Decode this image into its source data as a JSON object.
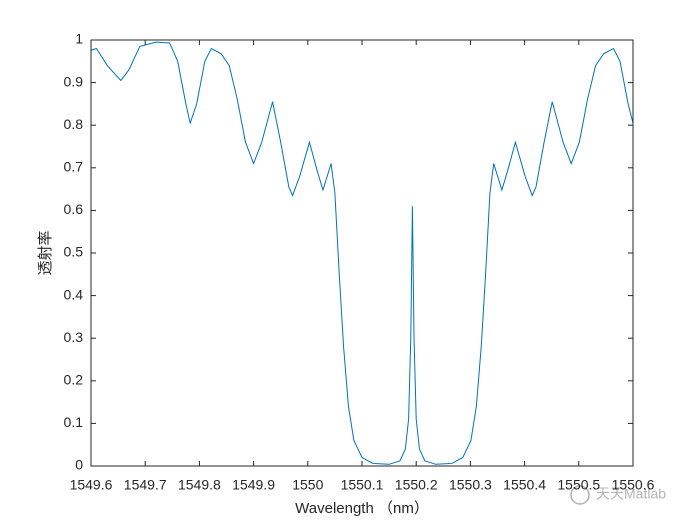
{
  "chart_data": {
    "type": "line",
    "xlabel": "Wavelength （nm）",
    "ylabel": "透射率",
    "watermark": "天天Matlab",
    "color": "#0072bd",
    "xlim": [
      1549.6,
      1550.6
    ],
    "ylim": [
      0,
      1
    ],
    "xticks": [
      1549.6,
      1549.7,
      1549.8,
      1549.9,
      1550,
      1550.1,
      1550.2,
      1550.3,
      1550.4,
      1550.5,
      1550.6
    ],
    "yticks": [
      0,
      0.1,
      0.2,
      0.3,
      0.4,
      0.5,
      0.6,
      0.7,
      0.8,
      0.9,
      1
    ],
    "x": [
      1549.6,
      1549.61,
      1549.63,
      1549.655,
      1549.67,
      1549.69,
      1549.72,
      1549.745,
      1549.76,
      1549.775,
      1549.783,
      1549.795,
      1549.81,
      1549.822,
      1549.84,
      1549.855,
      1549.87,
      1549.885,
      1549.9,
      1549.915,
      1549.935,
      1549.95,
      1549.965,
      1549.972,
      1549.985,
      1550.003,
      1550.018,
      1550.028,
      1550.043,
      1550.05,
      1550.058,
      1550.066,
      1550.075,
      1550.085,
      1550.1,
      1550.12,
      1550.15,
      1550.17,
      1550.18,
      1550.186,
      1550.19,
      1550.193,
      1550.196,
      1550.2,
      1550.206,
      1550.216,
      1550.236,
      1550.266,
      1550.286,
      1550.301,
      1550.311,
      1550.32,
      1550.328,
      1550.336,
      1550.343,
      1550.358,
      1550.368,
      1550.383,
      1550.401,
      1550.414,
      1550.421,
      1550.436,
      1550.451,
      1550.471,
      1550.486,
      1550.501,
      1550.516,
      1550.531,
      1550.546,
      1550.564,
      1550.576,
      1550.591,
      1550.6
    ],
    "values": [
      0.976,
      0.98,
      0.94,
      0.905,
      0.93,
      0.985,
      0.995,
      0.993,
      0.95,
      0.85,
      0.805,
      0.85,
      0.95,
      0.98,
      0.968,
      0.94,
      0.86,
      0.76,
      0.71,
      0.76,
      0.855,
      0.76,
      0.655,
      0.635,
      0.68,
      0.76,
      0.69,
      0.648,
      0.71,
      0.64,
      0.45,
      0.28,
      0.14,
      0.06,
      0.02,
      0.006,
      0.004,
      0.012,
      0.04,
      0.11,
      0.3,
      0.61,
      0.3,
      0.11,
      0.04,
      0.012,
      0.004,
      0.006,
      0.02,
      0.06,
      0.14,
      0.28,
      0.45,
      0.64,
      0.71,
      0.648,
      0.69,
      0.76,
      0.68,
      0.635,
      0.655,
      0.76,
      0.855,
      0.76,
      0.71,
      0.76,
      0.86,
      0.94,
      0.968,
      0.98,
      0.95,
      0.85,
      0.805
    ]
  }
}
